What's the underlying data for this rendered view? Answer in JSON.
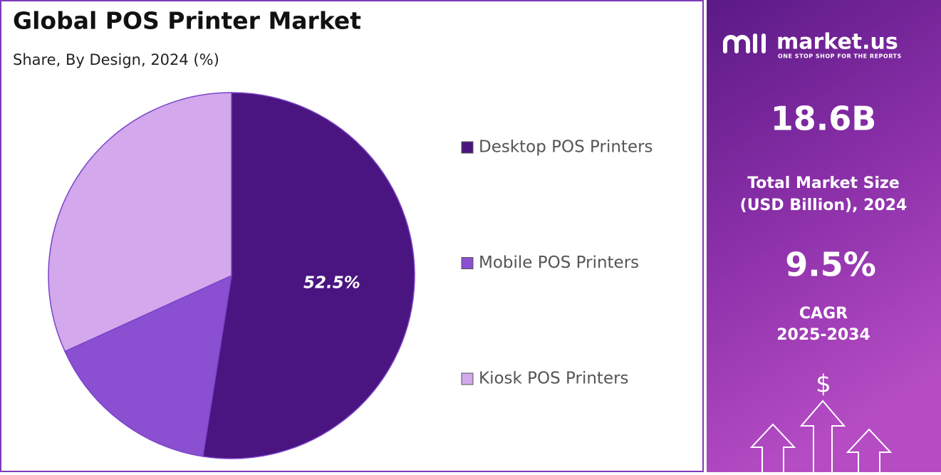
{
  "chart_data": {
    "type": "pie",
    "title": "Global POS Printer Market",
    "subtitle": "Share, By Design, 2024 (%)",
    "categories": [
      "Desktop POS Printers",
      "Mobile POS Printers",
      "Kiosk POS Printers"
    ],
    "values": [
      52.5,
      15.7,
      31.8
    ],
    "value_labels": [
      "52.5%",
      null,
      null
    ],
    "colors": [
      "#4a1580",
      "#8b4fd2",
      "#d3a8ec"
    ],
    "legend": "right"
  },
  "panel": {
    "brand": "market.us",
    "tagline": "ONE STOP SHOP FOR THE REPORTS",
    "market_size": "18.6B",
    "market_size_label": [
      "Total Market Size",
      "(USD Billion), 2024"
    ],
    "cagr": "9.5%",
    "cagr_label": [
      "CAGR",
      "2025-2034"
    ],
    "icon": "$"
  }
}
